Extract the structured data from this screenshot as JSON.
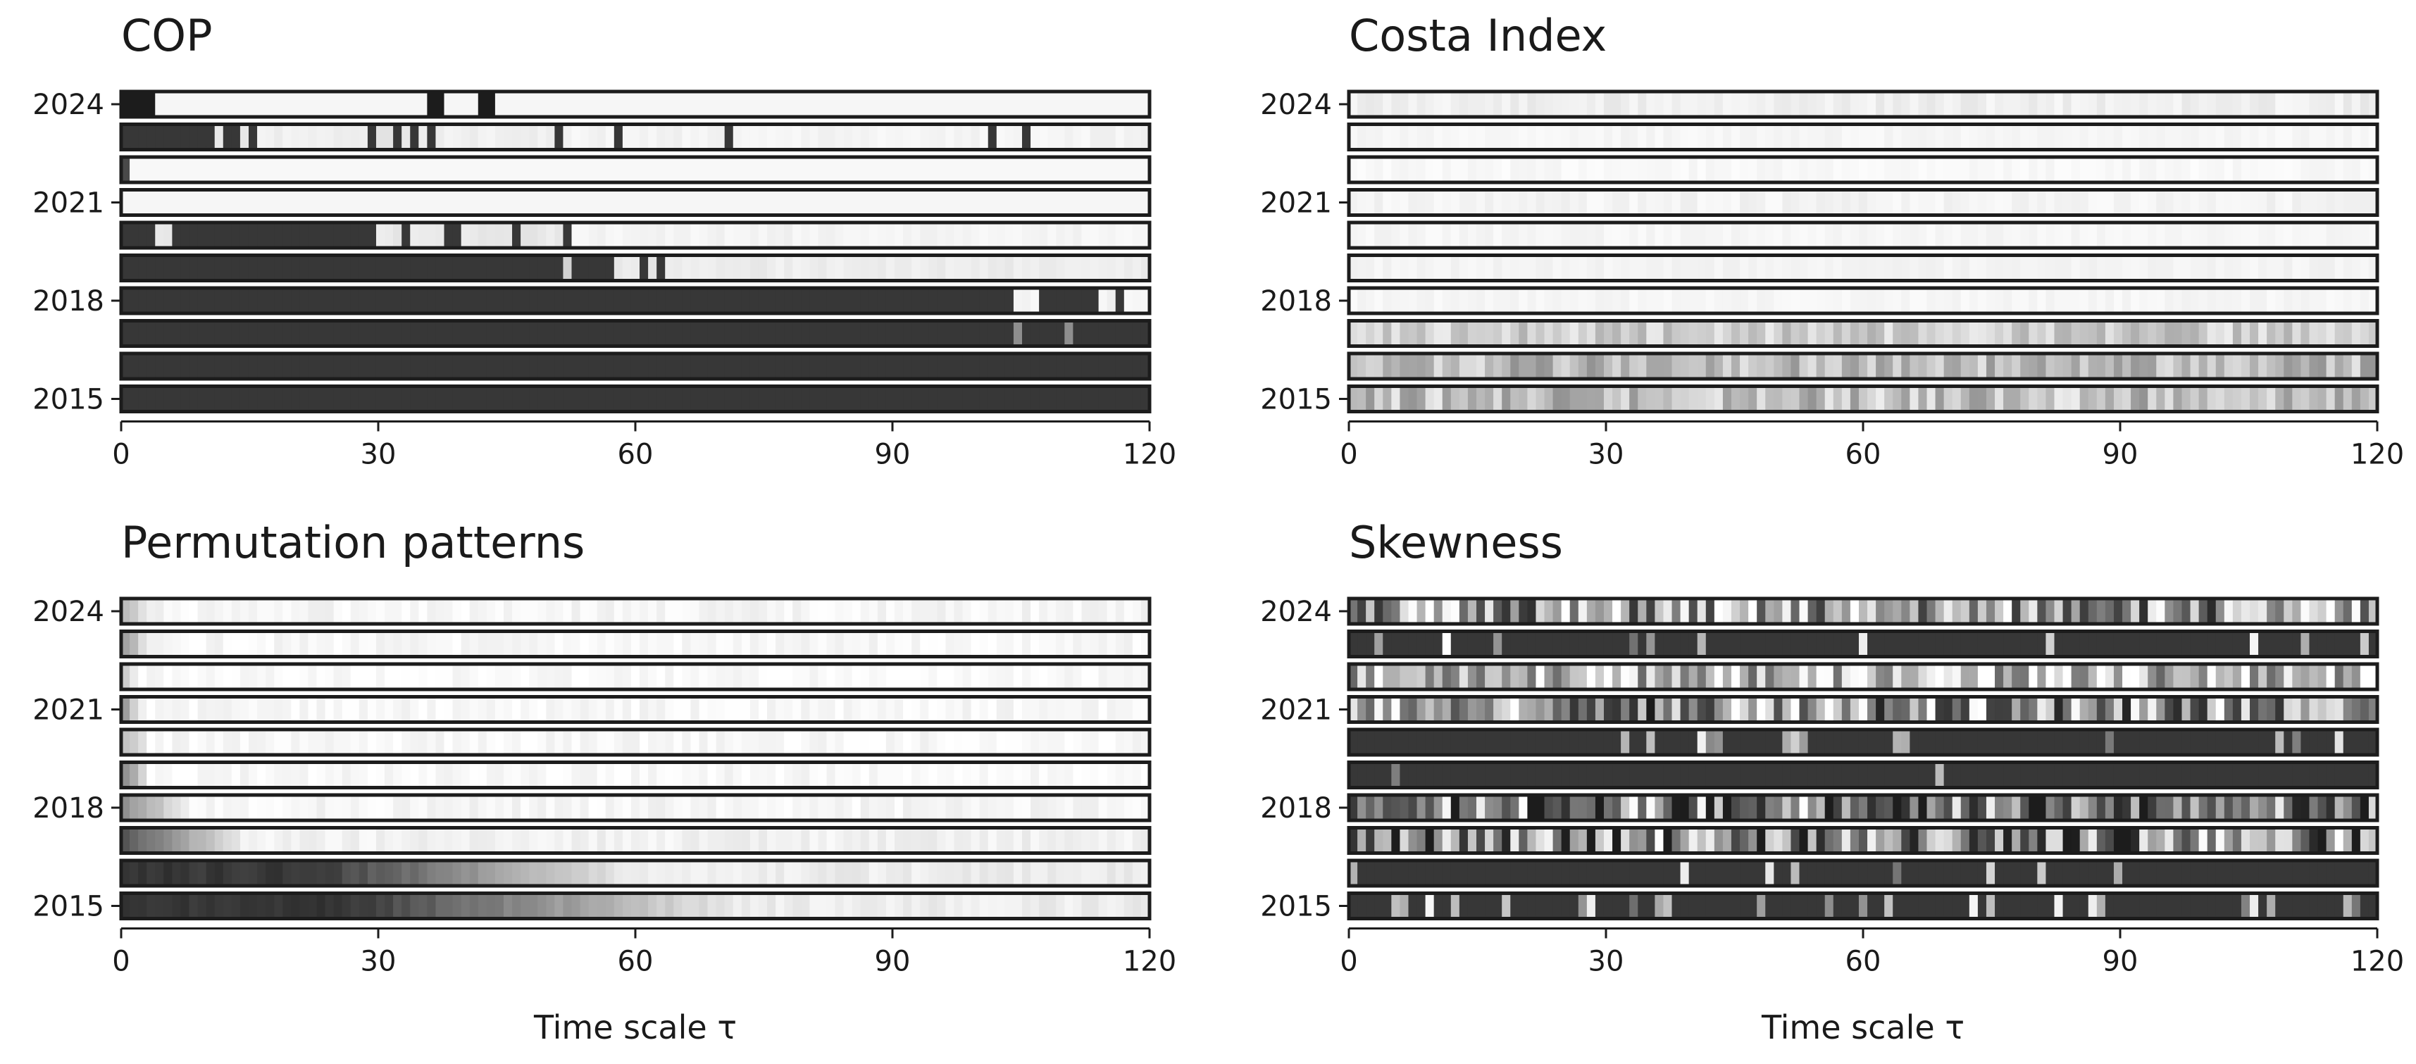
{
  "chart_data": [
    {
      "type": "heatmap",
      "title": "COP",
      "xlabel": "",
      "ylabel": "",
      "x_range": [
        0,
        120
      ],
      "x_ticks": [
        "0",
        "30",
        "60",
        "90",
        "120"
      ],
      "y_rows": [
        "2024",
        "2023",
        "2022",
        "2021",
        "2020",
        "2019",
        "2018",
        "2017",
        "2016",
        "2015"
      ],
      "y_tick_labels": [
        "2024",
        "2021",
        "2018",
        "2015"
      ],
      "value_scale": "0 = black, 1 = white",
      "rows": [
        {
          "base": 0.96,
          "spans": [
            [
              0,
              4,
              0
            ],
            [
              36,
              38,
              0
            ],
            [
              42,
              44,
              0
            ]
          ]
        },
        {
          "base": 0.12,
          "spans": [
            [
              11,
              12,
              0.9
            ],
            [
              14,
              15,
              0.9
            ],
            [
              16,
              29,
              0.93
            ],
            [
              30,
              32,
              0.9
            ],
            [
              33,
              34,
              0.9
            ],
            [
              35,
              36,
              0.9
            ],
            [
              37,
              51,
              0.93
            ],
            [
              52,
              58,
              0.95
            ],
            [
              59,
              71,
              0.95
            ],
            [
              72,
              102,
              0.95
            ],
            [
              103,
              106,
              0.95
            ],
            [
              107,
              121,
              0.95
            ]
          ]
        },
        {
          "base": 0.97,
          "spans": [
            [
              0,
              1,
              0.2
            ]
          ]
        },
        {
          "base": 0.96,
          "spans": []
        },
        {
          "base": 0.12,
          "spans": [
            [
              4,
              6,
              0.9
            ],
            [
              30,
              33,
              0.9
            ],
            [
              34,
              38,
              0.9
            ],
            [
              40,
              46,
              0.9
            ],
            [
              47,
              52,
              0.9
            ],
            [
              53,
              121,
              0.95
            ]
          ]
        },
        {
          "base": 0.12,
          "spans": [
            [
              52,
              53,
              0.8
            ],
            [
              58,
              61,
              0.9
            ],
            [
              62,
              63,
              0.9
            ],
            [
              64,
              66,
              0.9
            ],
            [
              66,
              121,
              0.92
            ]
          ]
        },
        {
          "base": 0.12,
          "spans": [
            [
              105,
              108,
              0.95
            ],
            [
              115,
              117,
              0.95
            ],
            [
              118,
              121,
              0.95
            ]
          ]
        },
        {
          "base": 0.12,
          "spans": [
            [
              105,
              106,
              0.5
            ],
            [
              111,
              112,
              0.5
            ]
          ]
        },
        {
          "base": 0.12,
          "spans": []
        },
        {
          "base": 0.12,
          "spans": []
        }
      ]
    },
    {
      "type": "heatmap",
      "title": "Costa Index",
      "xlabel": "",
      "ylabel": "",
      "x_range": [
        0,
        120
      ],
      "x_ticks": [
        "0",
        "30",
        "60",
        "90",
        "120"
      ],
      "y_rows": [
        "2024",
        "2023",
        "2022",
        "2021",
        "2020",
        "2019",
        "2018",
        "2017",
        "2016",
        "2015"
      ],
      "y_tick_labels": [
        "2024",
        "2021",
        "2018",
        "2015"
      ],
      "value_scale": "0 = black, 1 = white",
      "rows": [
        {
          "base": 0.93,
          "noise": 0.04,
          "seed": 11
        },
        {
          "base": 0.96,
          "noise": 0.02,
          "seed": 12
        },
        {
          "base": 0.97,
          "noise": 0.02,
          "seed": 13
        },
        {
          "base": 0.95,
          "noise": 0.03,
          "seed": 14
        },
        {
          "base": 0.96,
          "noise": 0.02,
          "seed": 15
        },
        {
          "base": 0.95,
          "noise": 0.02,
          "seed": 16
        },
        {
          "base": 0.96,
          "noise": 0.02,
          "seed": 17
        },
        {
          "base": 0.78,
          "noise": 0.14,
          "seed": 18
        },
        {
          "base": 0.7,
          "noise": 0.18,
          "seed": 19
        },
        {
          "base": 0.72,
          "noise": 0.2,
          "seed": 20
        }
      ]
    },
    {
      "type": "heatmap",
      "title": "Permutation patterns",
      "xlabel": "Time scale τ",
      "ylabel": "",
      "x_range": [
        0,
        120
      ],
      "x_ticks": [
        "0",
        "30",
        "60",
        "90",
        "120"
      ],
      "y_rows": [
        "2024",
        "2023",
        "2022",
        "2021",
        "2020",
        "2019",
        "2018",
        "2017",
        "2016",
        "2015"
      ],
      "y_tick_labels": [
        "2024",
        "2021",
        "2018",
        "2015"
      ],
      "value_scale": "0 = black, 1 = white",
      "rows": [
        {
          "ramp_start": 0,
          "ramp_end": 3,
          "low": 0.7,
          "high": 0.96,
          "seed": 31
        },
        {
          "ramp_start": 0,
          "ramp_end": 3,
          "low": 0.6,
          "high": 0.97,
          "seed": 32
        },
        {
          "ramp_start": 0,
          "ramp_end": 2,
          "low": 0.8,
          "high": 0.98,
          "seed": 33
        },
        {
          "ramp_start": 0,
          "ramp_end": 2,
          "low": 0.6,
          "high": 0.97,
          "seed": 34
        },
        {
          "ramp_start": 0,
          "ramp_end": 3,
          "low": 0.7,
          "high": 0.97,
          "seed": 35
        },
        {
          "ramp_start": 0,
          "ramp_end": 3,
          "low": 0.5,
          "high": 0.97,
          "seed": 36
        },
        {
          "ramp_start": 0,
          "ramp_end": 8,
          "low": 0.5,
          "high": 0.96,
          "seed": 37
        },
        {
          "ramp_start": 0,
          "ramp_end": 14,
          "low": 0.25,
          "high": 0.94,
          "seed": 38
        },
        {
          "ramp_start": 22,
          "ramp_end": 60,
          "low": 0.12,
          "high": 0.92,
          "seed": 39
        },
        {
          "ramp_start": 26,
          "ramp_end": 72,
          "low": 0.12,
          "high": 0.92,
          "seed": 40
        }
      ]
    },
    {
      "type": "heatmap",
      "title": "Skewness",
      "xlabel": "Time scale τ",
      "ylabel": "",
      "x_range": [
        0,
        120
      ],
      "x_ticks": [
        "0",
        "30",
        "60",
        "90",
        "120"
      ],
      "y_rows": [
        "2024",
        "2023",
        "2022",
        "2021",
        "2020",
        "2019",
        "2018",
        "2017",
        "2016",
        "2015"
      ],
      "y_tick_labels": [
        "2024",
        "2021",
        "2018",
        "2015"
      ],
      "value_scale": "0 = black, 1 = white",
      "rows": [
        {
          "base": 0.55,
          "noise": 0.5,
          "seed": 51
        },
        {
          "base": 0.12,
          "noise": 0,
          "seed": 52,
          "bright_frac": 0.08
        },
        {
          "base": 0.72,
          "noise": 0.4,
          "seed": 53
        },
        {
          "base": 0.5,
          "noise": 0.55,
          "seed": 54
        },
        {
          "base": 0.12,
          "noise": 0,
          "seed": 55,
          "bright_frac": 0.07
        },
        {
          "base": 0.12,
          "noise": 0,
          "seed": 56,
          "bright_frac": 0.01
        },
        {
          "base": 0.22,
          "noise": 0.3,
          "seed": 57,
          "bright_frac": 0.25
        },
        {
          "base": 0.45,
          "noise": 0.55,
          "seed": 58
        },
        {
          "base": 0.12,
          "noise": 0,
          "seed": 59,
          "bright_frac": 0.06
        },
        {
          "base": 0.12,
          "noise": 0,
          "seed": 60,
          "bright_frac": 0.2
        }
      ]
    }
  ]
}
